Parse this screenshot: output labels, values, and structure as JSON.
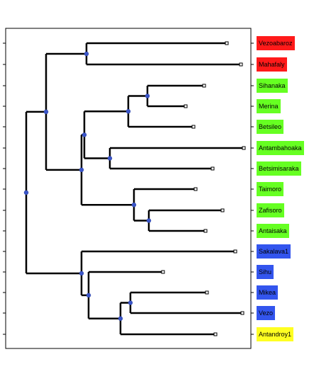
{
  "diagram": {
    "type": "dendrogram",
    "colors": {
      "branch": "#000000",
      "node": "#3a55c8",
      "leaf_marker_fill": "#ffffff",
      "frame": "#000000"
    },
    "leaves": [
      {
        "label": "Vezoabaroz",
        "color": "#ff1a1a"
      },
      {
        "label": "Mahafaly",
        "color": "#ff1a1a"
      },
      {
        "label": "Sihanaka",
        "color": "#66ff22"
      },
      {
        "label": "Merina",
        "color": "#66ff22"
      },
      {
        "label": "Betsileo",
        "color": "#66ff22"
      },
      {
        "label": "Antambahoaka",
        "color": "#66ff22"
      },
      {
        "label": "Betsimisaraka",
        "color": "#66ff22"
      },
      {
        "label": "Taimoro",
        "color": "#66ff22"
      },
      {
        "label": "Zafisoro",
        "color": "#66ff22"
      },
      {
        "label": "Antaisaka",
        "color": "#66ff22"
      },
      {
        "label": "Sakalava1",
        "color": "#3355ee"
      },
      {
        "label": "Sihu",
        "color": "#3355ee"
      },
      {
        "label": "Mikea",
        "color": "#3355ee"
      },
      {
        "label": "Vezo",
        "color": "#3355ee"
      },
      {
        "label": "Antandroy1",
        "color": "#ffff22"
      }
    ]
  }
}
